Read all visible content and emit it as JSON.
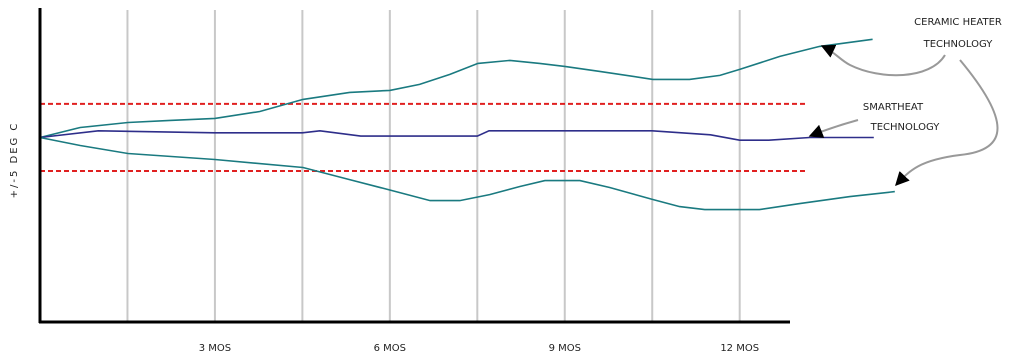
{
  "chart_data": {
    "type": "line",
    "y_label": "+/-5 DEG C",
    "xlim": [
      0,
      13
    ],
    "ylim": [
      -27.5,
      19
    ],
    "xticks": [
      {
        "value": 3,
        "label": "3 MOS"
      },
      {
        "value": 6,
        "label": "6 MOS"
      },
      {
        "value": 9,
        "label": "9 MOS"
      },
      {
        "value": 12,
        "label": "12 MOS"
      }
    ],
    "xgrid": [
      1.5,
      3,
      4.5,
      6,
      7.5,
      9,
      10.5,
      12
    ],
    "grid_color": "#c8c8c8",
    "limits": [
      5,
      -5
    ],
    "limit_color": "#e02020",
    "series": [
      {
        "name": "CERAMIC HEATER TECHNOLOGY",
        "color": "#1a7a80",
        "x": [
          0,
          0.69,
          1.51,
          2.23,
          3,
          3.77,
          4.51,
          5.31,
          6,
          6.51,
          7.03,
          7.51,
          8.06,
          8.57,
          9,
          9.6,
          10.51,
          11.14,
          11.66,
          12,
          12.69,
          13.37,
          14.28
        ],
        "values": [
          0,
          1.49,
          2.24,
          2.54,
          2.84,
          3.88,
          5.67,
          6.72,
          7.01,
          7.91,
          9.4,
          11.04,
          11.49,
          11.04,
          10.6,
          9.85,
          8.66,
          8.66,
          9.25,
          10.15,
          12.09,
          13.58,
          14.63
        ]
      },
      {
        "name": "SMARTHEAT TECHNOLOGY",
        "color": "#2e2e8a",
        "x": [
          0,
          1,
          3,
          4.5,
          4.8,
          5.5,
          7.5,
          7.7,
          10.5,
          11.5,
          12,
          12.5,
          13.2,
          14.3
        ],
        "values": [
          0,
          1,
          0.7,
          0.7,
          1,
          0.2,
          0.2,
          1,
          1,
          0.4,
          -0.4,
          -0.4,
          0,
          0
        ]
      },
      {
        "name": "CERAMIC HEATER TECHNOLOGY",
        "color": "#1a7a80",
        "x": [
          0,
          0.69,
          1.51,
          3,
          4.51,
          5.31,
          6.17,
          6.69,
          7.2,
          7.71,
          8.23,
          8.66,
          9.26,
          9.77,
          10.51,
          10.97,
          11.4,
          12.34,
          13.03,
          13.89,
          14.66
        ],
        "values": [
          0,
          -1.19,
          -2.39,
          -3.28,
          -4.48,
          -6.27,
          -8.21,
          -9.4,
          -9.4,
          -8.51,
          -7.31,
          -6.42,
          -6.42,
          -7.46,
          -9.25,
          -10.3,
          -10.75,
          -10.75,
          -9.85,
          -8.81,
          -8.06
        ]
      }
    ],
    "annotations": [
      {
        "lines": [
          "CERAMIC HEATER",
          "TECHNOLOGY"
        ]
      },
      {
        "lines": [
          "SMARTHEAT",
          "TECHNOLOGY"
        ]
      }
    ]
  }
}
